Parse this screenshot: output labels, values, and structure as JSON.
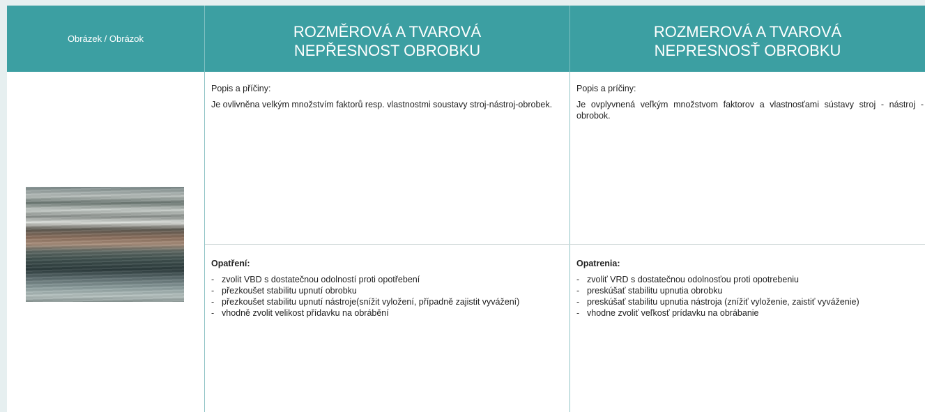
{
  "header": {
    "image_column": "Obrázek / Obrázok",
    "cz_title": [
      "ROZMĚROVÁ A TVAROVÁ",
      "NEPŘESNOST OBROBKU"
    ],
    "sk_title": [
      "ROZMEROVÁ A TVAROVÁ",
      "NEPRESNOSŤ OBROBKU"
    ]
  },
  "cz": {
    "causes_label": "Popis a příčiny:",
    "causes_text": "Je ovlivněna velkým množstvím faktorů resp. vlastnostmi soustavy stroj-nástroj-obrobek.",
    "measures_label": "Opatření:",
    "measures": [
      "zvolit VBD s dostatečnou odolností proti opotřebení",
      "přezkoušet stabilitu upnutí obrobku",
      "přezkoušet stabilitu upnutí nástroje(snížit vyložení, případně zajistit vyvážení)",
      "vhodně zvolit velikost přídavku na obrábění"
    ]
  },
  "sk": {
    "causes_label": "Popis a príčiny:",
    "causes_text": "Je ovplyvnená veľkým množstvom faktorov a vlastnosťami sústavy stroj - nástroj - obrobok.",
    "measures_label": "Opatrenia:",
    "measures": [
      "zvoliť VRD s dostatečnou odolnosťou proti opotrebeniu",
      "preskúšať stabilitu upnutia obrobku",
      "preskúšať stabilitu upnutia nástroja (znížiť vyloženie, zaistiť vyváženie)",
      "vhodne zvoliť veľkosť prídavku na obrábanie"
    ]
  }
}
